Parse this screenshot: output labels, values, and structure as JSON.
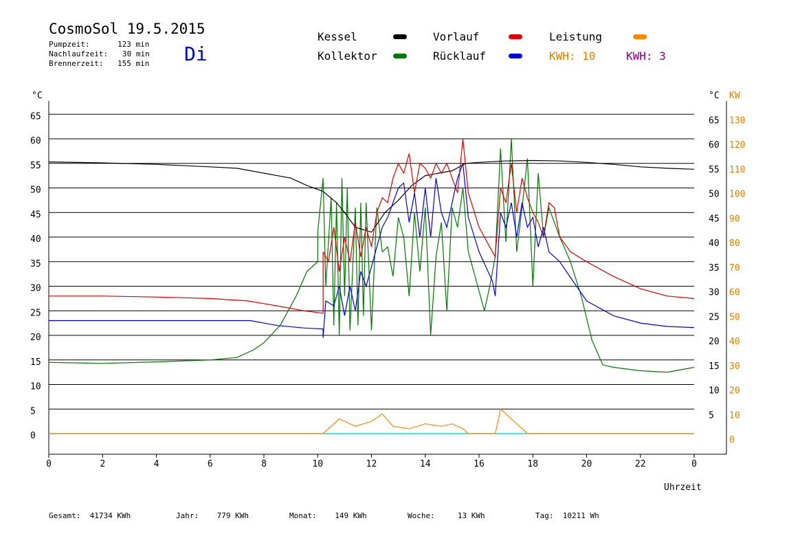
{
  "header": {
    "title": "CosmoSol 19.5.2015",
    "day": "Di",
    "info": [
      {
        "label": "Pumpzeit:",
        "value": "123 min"
      },
      {
        "label": "Nachlaufzeit:",
        "value": "30 min"
      },
      {
        "label": "Brennerzeit:",
        "value": "155 min"
      }
    ]
  },
  "legend": {
    "kessel": {
      "label": "Kessel",
      "color": "#000000"
    },
    "vorlauf": {
      "label": "Vorlauf",
      "color": "#dd0000"
    },
    "leistung": {
      "label": "Leistung",
      "color": "#ff8800"
    },
    "kollektor": {
      "label": "Kollektor",
      "color": "#007700"
    },
    "ruecklauf": {
      "label": "Rücklauf",
      "color": "#0000dd"
    },
    "kwh1": {
      "label": "KWH:",
      "value": "10",
      "color": "#e08000"
    },
    "kwh2": {
      "label": "KWH:",
      "value": "3",
      "color": "#800080"
    }
  },
  "footer": {
    "gesamt": {
      "label": "Gesamt:",
      "value": "41734 KWh"
    },
    "jahr": {
      "label": "Jahr:",
      "value": "779 KWh"
    },
    "monat": {
      "label": "Monat:",
      "value": "149 KWh"
    },
    "woche": {
      "label": "Woche:",
      "value": "13 KWh"
    },
    "tag": {
      "label": "Tag:",
      "value": "10211 Wh"
    }
  },
  "chart_data": {
    "type": "line",
    "xlabel": "Uhrzeit",
    "ylabel_left": "°C",
    "ylabel_right_1": "°C",
    "ylabel_right_2": "KW",
    "x_ticks": [
      "0",
      "2",
      "4",
      "6",
      "8",
      "10",
      "12",
      "14",
      "16",
      "18",
      "20",
      "22",
      "0"
    ],
    "xlim": [
      0,
      24
    ],
    "ylim": [
      -5,
      69
    ],
    "y_ticks_left": [
      "0",
      "5",
      "10",
      "15",
      "20",
      "25",
      "30",
      "35",
      "40",
      "45",
      "50",
      "55",
      "60",
      "65"
    ],
    "y_ticks_right_temp": [
      "5",
      "10",
      "15",
      "20",
      "25",
      "30",
      "35",
      "40",
      "45",
      "50",
      "55",
      "60",
      "65"
    ],
    "y_ticks_right_kw": [
      "0",
      "10",
      "20",
      "30",
      "40",
      "50",
      "60",
      "70",
      "80",
      "90",
      "100",
      "110",
      "120",
      "130"
    ],
    "series": [
      {
        "name": "Kessel",
        "color": "#000000",
        "points": [
          [
            0,
            55.3
          ],
          [
            2,
            55.1
          ],
          [
            4,
            54.8
          ],
          [
            6,
            54.3
          ],
          [
            7,
            54
          ],
          [
            8,
            53
          ],
          [
            9,
            52
          ],
          [
            9.6,
            50.5
          ],
          [
            10.2,
            49.3
          ],
          [
            10.7,
            47
          ],
          [
            11,
            45
          ],
          [
            11.4,
            42
          ],
          [
            12,
            41
          ],
          [
            12.5,
            45
          ],
          [
            13,
            47.5
          ],
          [
            13.5,
            50.5
          ],
          [
            14,
            52.5
          ],
          [
            14.5,
            53
          ],
          [
            15,
            53.5
          ],
          [
            15.5,
            55
          ],
          [
            16,
            55.2
          ],
          [
            17,
            55.5
          ],
          [
            18,
            55.6
          ],
          [
            19,
            55.5
          ],
          [
            20,
            55.2
          ],
          [
            21,
            54.8
          ],
          [
            22,
            54.3
          ],
          [
            23,
            54
          ],
          [
            24,
            53.8
          ]
        ]
      },
      {
        "name": "Vorlauf",
        "color": "#dd0000",
        "points": [
          [
            0,
            28
          ],
          [
            2,
            28
          ],
          [
            4,
            27.8
          ],
          [
            6,
            27.5
          ],
          [
            7.4,
            27
          ],
          [
            8.5,
            26
          ],
          [
            9.5,
            25
          ],
          [
            10.2,
            24.5
          ],
          [
            10.2,
            37
          ],
          [
            10.4,
            35
          ],
          [
            10.6,
            42
          ],
          [
            10.8,
            33
          ],
          [
            11,
            40
          ],
          [
            11.2,
            35
          ],
          [
            11.4,
            43
          ],
          [
            11.6,
            36
          ],
          [
            11.8,
            42
          ],
          [
            12,
            38
          ],
          [
            12.2,
            45
          ],
          [
            12.4,
            48
          ],
          [
            12.6,
            47
          ],
          [
            12.8,
            52
          ],
          [
            13,
            55
          ],
          [
            13.2,
            53
          ],
          [
            13.4,
            57
          ],
          [
            13.6,
            49
          ],
          [
            13.8,
            55
          ],
          [
            14,
            54
          ],
          [
            14.2,
            52
          ],
          [
            14.4,
            55
          ],
          [
            14.6,
            53
          ],
          [
            14.8,
            55
          ],
          [
            15,
            52
          ],
          [
            15.2,
            49
          ],
          [
            15.4,
            60
          ],
          [
            15.6,
            49
          ],
          [
            16,
            42
          ],
          [
            16.4,
            38
          ],
          [
            16.6,
            36
          ],
          [
            16.8,
            50
          ],
          [
            17,
            47
          ],
          [
            17.2,
            55
          ],
          [
            17.4,
            45
          ],
          [
            17.6,
            52
          ],
          [
            17.8,
            48
          ],
          [
            18,
            45
          ],
          [
            18.2,
            43
          ],
          [
            18.4,
            40
          ],
          [
            18.6,
            47
          ],
          [
            18.8,
            46
          ],
          [
            19,
            40
          ],
          [
            19.4,
            37
          ],
          [
            20,
            35
          ],
          [
            21,
            32
          ],
          [
            22,
            29.5
          ],
          [
            23,
            28
          ],
          [
            24,
            27.5
          ]
        ]
      },
      {
        "name": "Rücklauf",
        "color": "#0000dd",
        "points": [
          [
            0,
            23
          ],
          [
            2,
            23
          ],
          [
            4,
            23
          ],
          [
            6,
            23
          ],
          [
            7.5,
            23
          ],
          [
            8.5,
            22
          ],
          [
            9.5,
            21.5
          ],
          [
            10.2,
            21.3
          ],
          [
            10.2,
            19.5
          ],
          [
            10.3,
            27
          ],
          [
            10.6,
            26
          ],
          [
            10.8,
            30
          ],
          [
            11,
            24
          ],
          [
            11.2,
            30
          ],
          [
            11.4,
            25
          ],
          [
            11.6,
            33
          ],
          [
            11.8,
            30
          ],
          [
            12,
            34
          ],
          [
            12.2,
            38
          ],
          [
            12.4,
            42
          ],
          [
            12.6,
            44
          ],
          [
            12.8,
            47
          ],
          [
            13,
            50
          ],
          [
            13.2,
            51
          ],
          [
            13.4,
            43
          ],
          [
            13.6,
            49
          ],
          [
            13.8,
            40
          ],
          [
            14,
            50
          ],
          [
            14.2,
            40
          ],
          [
            14.4,
            52
          ],
          [
            14.6,
            45
          ],
          [
            14.8,
            42
          ],
          [
            15,
            47
          ],
          [
            15.2,
            52
          ],
          [
            15.4,
            55
          ],
          [
            15.6,
            44
          ],
          [
            16,
            37
          ],
          [
            16.5,
            31
          ],
          [
            16.6,
            28
          ],
          [
            16.8,
            45
          ],
          [
            17,
            42
          ],
          [
            17.2,
            47
          ],
          [
            17.4,
            40
          ],
          [
            17.6,
            47
          ],
          [
            17.8,
            42
          ],
          [
            18,
            44
          ],
          [
            18.2,
            38
          ],
          [
            18.4,
            42
          ],
          [
            18.6,
            37
          ],
          [
            19,
            35
          ],
          [
            19.5,
            31
          ],
          [
            20,
            27
          ],
          [
            21,
            24
          ],
          [
            22,
            22.5
          ],
          [
            23,
            21.8
          ],
          [
            24,
            21.6
          ]
        ]
      },
      {
        "name": "Kollektor",
        "color": "#007700",
        "points": [
          [
            0,
            14.5
          ],
          [
            2,
            14.3
          ],
          [
            4,
            14.6
          ],
          [
            6,
            15
          ],
          [
            7,
            15.5
          ],
          [
            7.6,
            17
          ],
          [
            8,
            18.5
          ],
          [
            8.6,
            22
          ],
          [
            9.2,
            28
          ],
          [
            9.6,
            33
          ],
          [
            10,
            35
          ],
          [
            10,
            41
          ],
          [
            10.2,
            52
          ],
          [
            10.3,
            30
          ],
          [
            10.5,
            48
          ],
          [
            10.6,
            22
          ],
          [
            10.7,
            47
          ],
          [
            10.8,
            20
          ],
          [
            10.9,
            52
          ],
          [
            11,
            28
          ],
          [
            11.1,
            50
          ],
          [
            11.2,
            21
          ],
          [
            11.4,
            46
          ],
          [
            11.5,
            22
          ],
          [
            11.6,
            47
          ],
          [
            11.7,
            24
          ],
          [
            11.8,
            47
          ],
          [
            12,
            21
          ],
          [
            12.2,
            46
          ],
          [
            12.4,
            37
          ],
          [
            12.6,
            38
          ],
          [
            12.8,
            32
          ],
          [
            13,
            44
          ],
          [
            13.2,
            40
          ],
          [
            13.4,
            28
          ],
          [
            13.6,
            45
          ],
          [
            13.8,
            33
          ],
          [
            14,
            46
          ],
          [
            14.2,
            20
          ],
          [
            14.4,
            36
          ],
          [
            14.6,
            43
          ],
          [
            14.8,
            25
          ],
          [
            15,
            46
          ],
          [
            15.2,
            42
          ],
          [
            15.4,
            50
          ],
          [
            15.6,
            37
          ],
          [
            16,
            29
          ],
          [
            16.2,
            25
          ],
          [
            16.4,
            30
          ],
          [
            16.6,
            36
          ],
          [
            16.8,
            58
          ],
          [
            17,
            39
          ],
          [
            17.2,
            60
          ],
          [
            17.4,
            37
          ],
          [
            17.6,
            46
          ],
          [
            17.8,
            56
          ],
          [
            18,
            30
          ],
          [
            18.2,
            53
          ],
          [
            18.4,
            40
          ],
          [
            18.6,
            46
          ],
          [
            19,
            40
          ],
          [
            19.4,
            35
          ],
          [
            19.8,
            28
          ],
          [
            20.2,
            19
          ],
          [
            20.6,
            14
          ],
          [
            21,
            13.5
          ],
          [
            22,
            12.8
          ],
          [
            23,
            12.5
          ],
          [
            24,
            13.5
          ]
        ]
      },
      {
        "name": "Leistung",
        "color": "#ff8800",
        "unit": "KW",
        "points": [
          [
            0,
            0
          ],
          [
            10.2,
            0
          ],
          [
            10.8,
            3
          ],
          [
            11.4,
            1.5
          ],
          [
            12,
            2.5
          ],
          [
            12.4,
            4
          ],
          [
            12.8,
            1.5
          ],
          [
            13.4,
            1
          ],
          [
            14,
            2
          ],
          [
            14.6,
            1.5
          ],
          [
            15,
            2
          ],
          [
            15.4,
            1
          ],
          [
            15.6,
            0
          ],
          [
            16.6,
            0
          ],
          [
            16.8,
            5
          ],
          [
            17.4,
            2
          ],
          [
            17.8,
            0
          ],
          [
            24,
            0
          ]
        ]
      }
    ]
  }
}
